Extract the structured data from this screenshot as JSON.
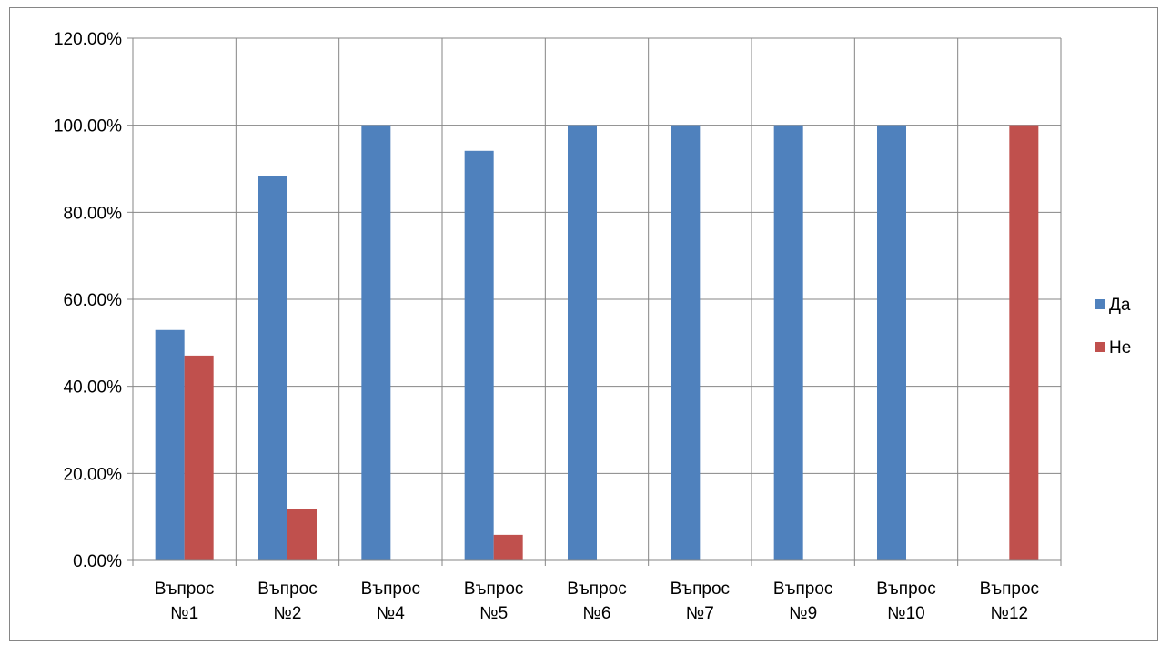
{
  "chart_data": {
    "type": "bar",
    "categories": [
      [
        "Въпрос",
        "№1"
      ],
      [
        "Въпрос",
        "№2"
      ],
      [
        "Въпрос",
        "№4"
      ],
      [
        "Въпрос",
        "№5"
      ],
      [
        "Въпрос",
        "№6"
      ],
      [
        "Въпрос",
        "№7"
      ],
      [
        "Въпрос",
        "№9"
      ],
      [
        "Въпрос",
        "№10"
      ],
      [
        "Въпрос",
        "№12"
      ]
    ],
    "series": [
      {
        "name": "Да",
        "color": "#4F81BD",
        "values": [
          52.94,
          88.24,
          100,
          94.12,
          100,
          100,
          100,
          100,
          0
        ]
      },
      {
        "name": "Не",
        "color": "#C0504D",
        "values": [
          47.06,
          11.76,
          0,
          5.88,
          0,
          0,
          0,
          0,
          100
        ]
      }
    ],
    "ylim": [
      0,
      120
    ],
    "yticks": [
      "0.00%",
      "20.00%",
      "40.00%",
      "60.00%",
      "80.00%",
      "100.00%",
      "120.00%"
    ],
    "grid": true,
    "legend_position": "right"
  }
}
